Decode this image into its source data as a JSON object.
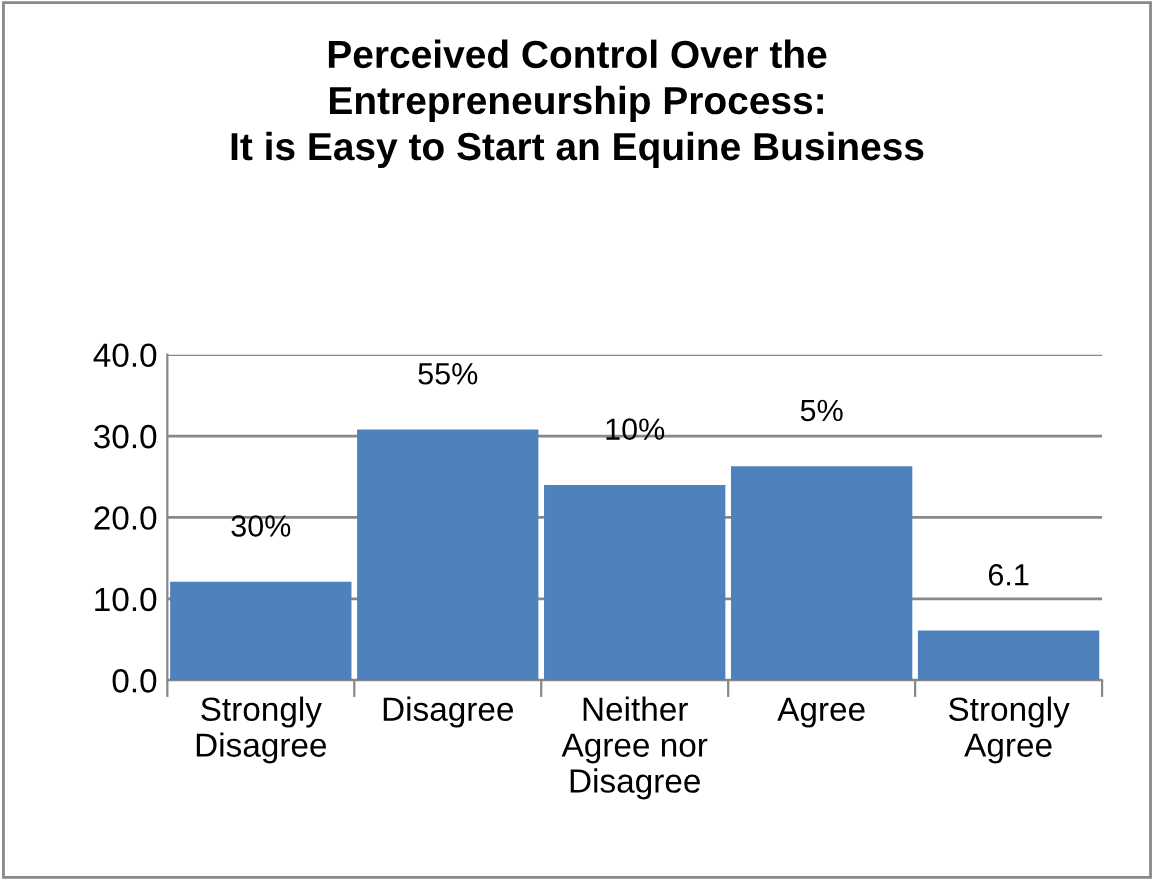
{
  "chart_data": {
    "type": "bar",
    "title": "Perceived Control Over the\nEntrepreneurship Process:\nIt is Easy to Start an Equine Business",
    "categories": [
      "Strongly\nDisagree",
      "Disagree",
      "Neither\nAgree nor\nDisagree",
      "Agree",
      "Strongly\nAgree"
    ],
    "values": [
      12.1,
      30.8,
      24.0,
      26.3,
      6.1
    ],
    "annotations": [
      {
        "text": "30%",
        "x": "Strongly\nDisagree",
        "y": 12.1
      },
      {
        "text": "55%",
        "x": "Disagree",
        "y": 30.8
      },
      {
        "text": "10%",
        "x": "Neither\nAgree nor\nDisagree",
        "y": 24.0
      },
      {
        "text": "5%",
        "x": "Agree",
        "y": 26.3
      },
      {
        "text": "6.1",
        "x": "Strongly\nAgree",
        "y": 6.1
      }
    ],
    "color": "#4f81bd",
    "ylim": [
      0,
      40
    ],
    "yticks": [
      {
        "value": 0,
        "label": "0.0"
      },
      {
        "value": 10,
        "label": "10.0"
      },
      {
        "value": 20,
        "label": "20.0"
      },
      {
        "value": 30,
        "label": "30.0"
      },
      {
        "value": 40,
        "label": "40.0"
      }
    ],
    "grid": "y",
    "legend": false
  }
}
